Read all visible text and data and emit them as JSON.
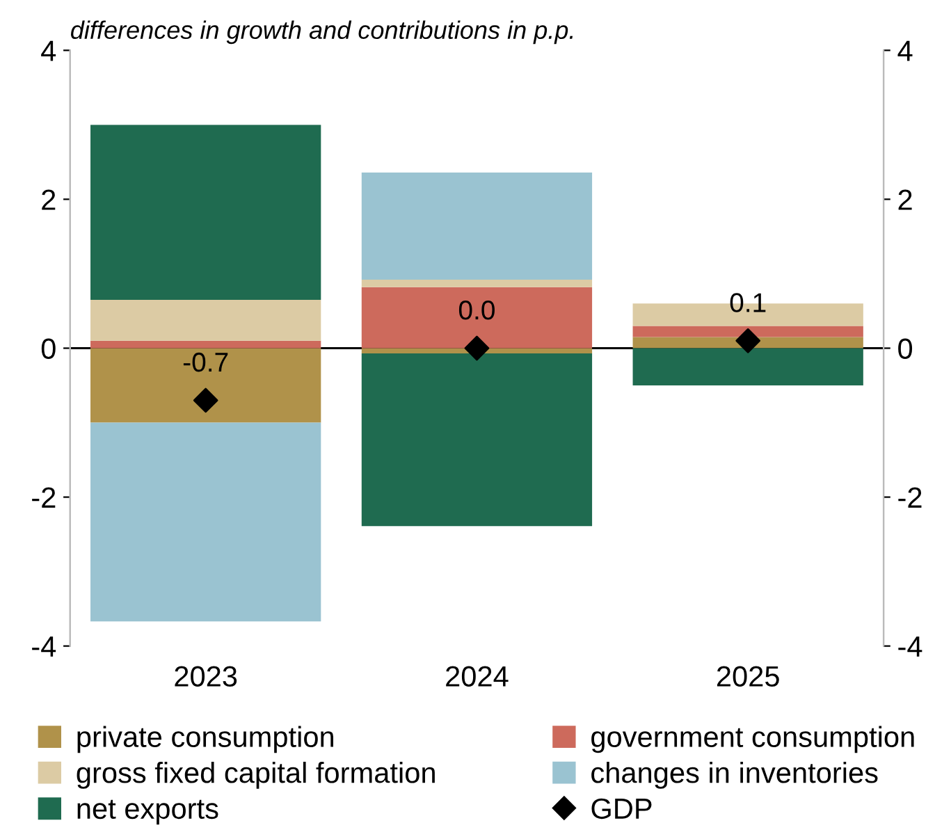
{
  "chart_data": {
    "type": "bar",
    "stacked": true,
    "title": "differences in growth and contributions in p.p.",
    "categories": [
      "2023",
      "2024",
      "2025"
    ],
    "series": [
      {
        "name": "private consumption",
        "color": "#b0924a",
        "values": [
          -1.0,
          -0.07,
          0.15
        ]
      },
      {
        "name": "government consumption",
        "color": "#cd6a5c",
        "values": [
          0.1,
          0.82,
          0.15
        ]
      },
      {
        "name": "gross fixed capital formation",
        "color": "#dccba4",
        "values": [
          0.55,
          0.1,
          0.3
        ]
      },
      {
        "name": "changes in inventories",
        "color": "#9ac3d1",
        "values": [
          -2.67,
          1.44,
          0.0
        ]
      },
      {
        "name": "net exports",
        "color": "#1f6b50",
        "values": [
          2.35,
          -2.32,
          -0.5
        ]
      },
      {
        "name": "GDP",
        "type": "scatter",
        "marker": "diamond",
        "color": "#000000",
        "values": [
          -0.7,
          0.0,
          0.1
        ],
        "value_labels": [
          "-0.7",
          "0.0",
          "0.1"
        ]
      }
    ],
    "ylim": [
      -4,
      4
    ],
    "yticks": [
      -4,
      -2,
      0,
      2,
      4
    ],
    "y2lim": [
      -4,
      4
    ],
    "y2ticks": [
      -4,
      -2,
      0,
      2,
      4
    ],
    "ref_lines": [
      {
        "axis": "y",
        "value": 0,
        "color": "#000000"
      }
    ],
    "legend": "bottom",
    "grid": false
  }
}
